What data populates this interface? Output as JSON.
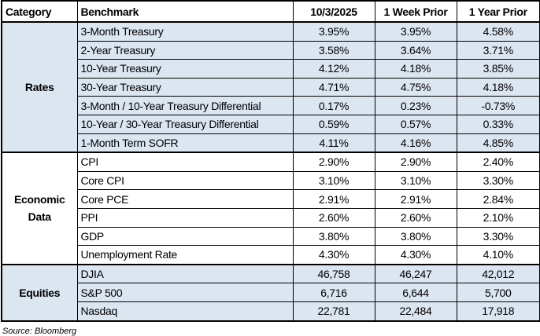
{
  "table": {
    "header": [
      "Category",
      "Benchmark",
      "10/3/2025",
      "1 Week Prior",
      "1 Year Prior"
    ],
    "groups": [
      {
        "category": "Rates",
        "rows": [
          [
            "3-Month Treasury",
            "3.95%",
            "3.95%",
            "4.58%"
          ],
          [
            "2-Year Treasury",
            "3.58%",
            "3.64%",
            "3.71%"
          ],
          [
            "10-Year Treasury",
            "4.12%",
            "4.18%",
            "3.85%"
          ],
          [
            "30-Year Treasury",
            "4.71%",
            "4.75%",
            "4.18%"
          ],
          [
            "3-Month / 10-Year Treasury Differential",
            "0.17%",
            "0.23%",
            "-0.73%"
          ],
          [
            "10-Year / 30-Year Treasury Differential",
            "0.59%",
            "0.57%",
            "0.33%"
          ],
          [
            "1-Month Term SOFR",
            "4.11%",
            "4.16%",
            "4.85%"
          ]
        ]
      },
      {
        "category": "Economic Data",
        "rows": [
          [
            "CPI",
            "2.90%",
            "2.90%",
            "2.40%"
          ],
          [
            "Core CPI",
            "3.10%",
            "3.10%",
            "3.30%"
          ],
          [
            "Core PCE",
            "2.91%",
            "2.91%",
            "2.84%"
          ],
          [
            "PPI",
            "2.60%",
            "2.60%",
            "2.10%"
          ],
          [
            "GDP",
            "3.80%",
            "3.80%",
            "3.30%"
          ],
          [
            "Unemployment Rate",
            "4.30%",
            "4.30%",
            "4.10%"
          ]
        ]
      },
      {
        "category": "Equities",
        "rows": [
          [
            "DJIA",
            "46,758",
            "46,247",
            "42,012"
          ],
          [
            "S&P 500",
            "6,716",
            "6,644",
            "5,700"
          ],
          [
            "Nasdaq",
            "22,781",
            "22,484",
            "17,918"
          ]
        ]
      }
    ]
  },
  "source": "Source: Bloomberg"
}
